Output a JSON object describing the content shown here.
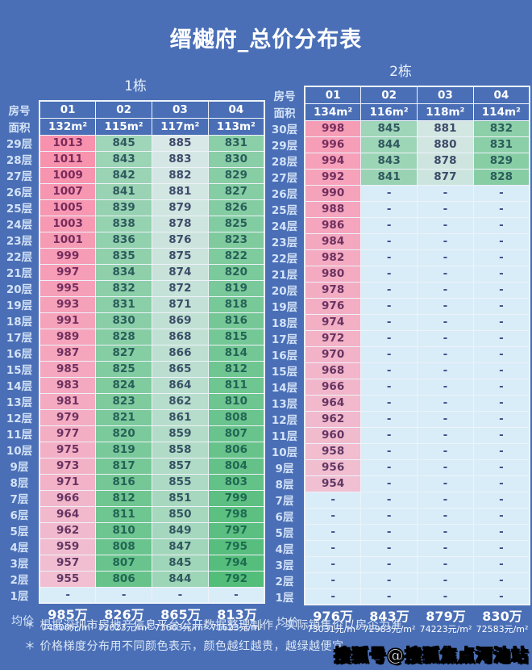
{
  "page": {
    "title": "缙樾府_总价分布表",
    "footnote1": "＊ 根据深圳市房地产信息平台公开数据整理制作，实际销售价以房企为准",
    "footnote2": "＊ 价格梯度分布用不同颜色表示，颜色越红越贵，越绿越便宜",
    "watermark": "搜狐号@搜狐焦点河池站",
    "background_color": "#4a6fb6"
  },
  "chart_data": {
    "type": "table",
    "title": "缙樾府_总价分布表",
    "value_unit": "万元 (total price)",
    "color_scale": {
      "min": 792,
      "mid": 897,
      "max": 1013,
      "low_color": "#53bd7a",
      "mid_color": "#e9edf5",
      "high_color": "#f891ad",
      "low_text": "#1d6b50",
      "mid_text": "#45456f",
      "high_text": "#7c2a5a",
      "empty_bg": "#d9edf8",
      "empty_text": "#3a4e85",
      "legend_note": "颜色越红越贵，越绿越便宜"
    },
    "tables": [
      {
        "name": "1栋",
        "corner_label": "房号",
        "area_label": "面积",
        "avg_label": "均价",
        "units": [
          "01",
          "02",
          "03",
          "04"
        ],
        "areas": [
          "132m²",
          "115m²",
          "117m²",
          "113m²"
        ],
        "floors": [
          "29层",
          "28层",
          "27层",
          "26层",
          "25层",
          "24层",
          "23层",
          "22层",
          "21层",
          "20层",
          "19层",
          "18层",
          "17层",
          "16层",
          "15层",
          "14层",
          "13层",
          "12层",
          "11层",
          "10层",
          "9层",
          "8层",
          "7层",
          "6层",
          "5层",
          "4层",
          "3层",
          "2层",
          "1层"
        ],
        "values": [
          [
            1013,
            845,
            885,
            831
          ],
          [
            1011,
            843,
            883,
            830
          ],
          [
            1009,
            842,
            882,
            829
          ],
          [
            1007,
            841,
            881,
            827
          ],
          [
            1005,
            839,
            879,
            826
          ],
          [
            1003,
            838,
            878,
            825
          ],
          [
            1001,
            836,
            876,
            823
          ],
          [
            999,
            835,
            875,
            822
          ],
          [
            997,
            834,
            874,
            820
          ],
          [
            995,
            832,
            872,
            819
          ],
          [
            993,
            831,
            871,
            818
          ],
          [
            991,
            830,
            869,
            816
          ],
          [
            989,
            828,
            868,
            815
          ],
          [
            987,
            827,
            866,
            814
          ],
          [
            985,
            825,
            865,
            812
          ],
          [
            983,
            824,
            864,
            811
          ],
          [
            981,
            823,
            862,
            810
          ],
          [
            979,
            821,
            861,
            808
          ],
          [
            977,
            820,
            859,
            807
          ],
          [
            975,
            819,
            858,
            806
          ],
          [
            973,
            817,
            857,
            804
          ],
          [
            971,
            816,
            855,
            803
          ],
          [
            966,
            812,
            851,
            799
          ],
          [
            964,
            811,
            850,
            798
          ],
          [
            962,
            810,
            849,
            797
          ],
          [
            959,
            808,
            847,
            795
          ],
          [
            957,
            807,
            845,
            794
          ],
          [
            955,
            806,
            844,
            792
          ],
          [
            null,
            null,
            null,
            null
          ]
        ],
        "avg_total": [
          "985万",
          "826万",
          "865万",
          "813万"
        ],
        "avg_unit_price": [
          "74306元/m²",
          "72023元/m²",
          "73663元/m²",
          "71623元/m²"
        ]
      },
      {
        "name": "2栋",
        "corner_label": "房号",
        "area_label": "面积",
        "avg_label": "均价",
        "units": [
          "01",
          "02",
          "03",
          "04"
        ],
        "areas": [
          "134m²",
          "116m²",
          "118m²",
          "114m²"
        ],
        "floors": [
          "30层",
          "29层",
          "28层",
          "27层",
          "26层",
          "25层",
          "24层",
          "23层",
          "22层",
          "21层",
          "20层",
          "19层",
          "18层",
          "17层",
          "16层",
          "15层",
          "14层",
          "13层",
          "12层",
          "11层",
          "10层",
          "9层",
          "8层",
          "7层",
          "6层",
          "5层",
          "4层",
          "3层",
          "2层",
          "1层"
        ],
        "values": [
          [
            998,
            845,
            881,
            832
          ],
          [
            996,
            844,
            880,
            831
          ],
          [
            994,
            843,
            878,
            829
          ],
          [
            992,
            841,
            877,
            828
          ],
          [
            990,
            null,
            null,
            null
          ],
          [
            988,
            null,
            null,
            null
          ],
          [
            986,
            null,
            null,
            null
          ],
          [
            984,
            null,
            null,
            null
          ],
          [
            982,
            null,
            null,
            null
          ],
          [
            980,
            null,
            null,
            null
          ],
          [
            978,
            null,
            null,
            null
          ],
          [
            976,
            null,
            null,
            null
          ],
          [
            974,
            null,
            null,
            null
          ],
          [
            972,
            null,
            null,
            null
          ],
          [
            970,
            null,
            null,
            null
          ],
          [
            968,
            null,
            null,
            null
          ],
          [
            966,
            null,
            null,
            null
          ],
          [
            964,
            null,
            null,
            null
          ],
          [
            962,
            null,
            null,
            null
          ],
          [
            960,
            null,
            null,
            null
          ],
          [
            958,
            null,
            null,
            null
          ],
          [
            956,
            null,
            null,
            null
          ],
          [
            954,
            null,
            null,
            null
          ],
          [
            null,
            null,
            null,
            null
          ],
          [
            null,
            null,
            null,
            null
          ],
          [
            null,
            null,
            null,
            null
          ],
          [
            null,
            null,
            null,
            null
          ],
          [
            null,
            null,
            null,
            null
          ],
          [
            null,
            null,
            null,
            null
          ],
          [
            null,
            null,
            null,
            null
          ]
        ],
        "avg_total": [
          "976万",
          "843万",
          "879万",
          "830万"
        ],
        "avg_unit_price": [
          "73031元/m²",
          "72983元/m²",
          "74223元/m²",
          "72583元/m²"
        ]
      }
    ]
  }
}
